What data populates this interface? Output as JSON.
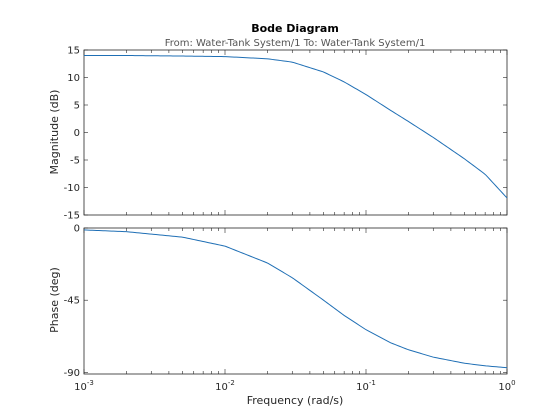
{
  "chart_data": [
    {
      "type": "line",
      "panel": "magnitude",
      "title": "Bode Diagram",
      "subtitle": "From: Water-Tank System/1  To: Water-Tank System/1",
      "ylabel": "Magnitude (dB)",
      "xscale": "log",
      "xlim": [
        0.001,
        1
      ],
      "ylim": [
        -15,
        15
      ],
      "yticks": [
        15,
        10,
        5,
        0,
        -5,
        -10,
        -15
      ],
      "grid": false,
      "color": "#1f6fb5",
      "x": [
        0.001,
        0.002,
        0.005,
        0.01,
        0.02,
        0.03,
        0.05,
        0.07,
        0.1,
        0.15,
        0.2,
        0.3,
        0.5,
        0.7,
        1.0
      ],
      "y": [
        14.0,
        14.0,
        13.9,
        13.8,
        13.4,
        12.8,
        11.0,
        9.2,
        6.9,
        4.0,
        2.0,
        -0.9,
        -4.8,
        -7.6,
        -11.9
      ]
    },
    {
      "type": "line",
      "panel": "phase",
      "ylabel": "Phase (deg)",
      "xlabel": "Frequency  (rad/s)",
      "xscale": "log",
      "xlim": [
        0.001,
        1
      ],
      "ylim": [
        -91,
        0
      ],
      "yticks": [
        0,
        -45,
        -90
      ],
      "xticks": [
        0.001,
        0.01,
        0.1,
        1
      ],
      "xtick_labels": [
        {
          "base": "10",
          "exp": "-3"
        },
        {
          "base": "10",
          "exp": "-2"
        },
        {
          "base": "10",
          "exp": "-1"
        },
        {
          "base": "10",
          "exp": "0"
        }
      ],
      "grid": false,
      "color": "#1f6fb5",
      "x": [
        0.001,
        0.002,
        0.005,
        0.01,
        0.02,
        0.03,
        0.05,
        0.07,
        0.1,
        0.15,
        0.2,
        0.3,
        0.5,
        0.7,
        1.0
      ],
      "y": [
        -1.2,
        -2.3,
        -5.7,
        -11.3,
        -21.8,
        -31.0,
        -45.0,
        -54.5,
        -63.4,
        -71.6,
        -75.9,
        -80.5,
        -84.3,
        -85.9,
        -87.1
      ]
    }
  ]
}
